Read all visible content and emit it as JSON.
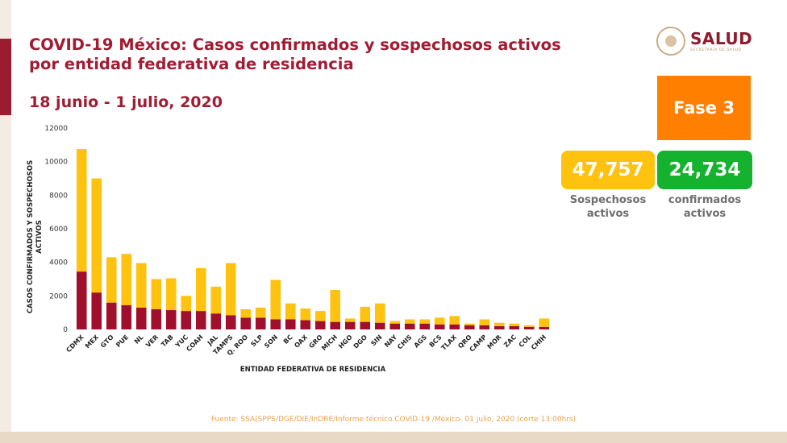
{
  "header": {
    "title_line1": "COVID-19 México: Casos confirmados y sospechosos activos",
    "title_line2": "por entidad federativa de residencia",
    "date_range": "18 junio - 1 julio, 2020"
  },
  "logo": {
    "text": "SALUD",
    "subtext": "SECRETARÍA DE SALUD"
  },
  "phase": {
    "label": "Fase 3",
    "color": "#ff8000"
  },
  "kpis": {
    "suspected": {
      "value": "47,757",
      "label_line1": "Sospechosos",
      "label_line2": "activos",
      "color": "#ffc20e"
    },
    "confirmed": {
      "value": "24,734",
      "label_line1": "confirmados",
      "label_line2": "activos",
      "color": "#14b22e"
    }
  },
  "source": "Fuente: SSA(SPPS/DGE/DIE/InDRE/Informe técnico.COVID-19 /México- 01 julio, 2020 (corte 13:00hrs)",
  "chart_data": {
    "type": "bar",
    "stacked": true,
    "title": "",
    "xlabel": "ENTIDAD FEDERATIVA DE RESIDENCIA",
    "ylabel": "CASOS CONFIRMADOS Y SOSPECHOSOS ACTIVOS",
    "ylim": [
      0,
      12000
    ],
    "yticks": [
      0,
      2000,
      4000,
      6000,
      8000,
      10000,
      12000
    ],
    "grid": false,
    "legend": "none",
    "categories": [
      "CDMX",
      "MEX",
      "GTO",
      "PUE",
      "NL",
      "VER",
      "TAB",
      "YUC",
      "COAH",
      "JAL",
      "TAMPS",
      "Q. ROO",
      "SLP",
      "SON",
      "BC",
      "OAX",
      "GRO",
      "MICH",
      "HGO",
      "DGO",
      "SIN",
      "NAY",
      "CHIS",
      "AGS",
      "BCS",
      "TLAX",
      "QRO",
      "CAMP",
      "MOR",
      "ZAC",
      "COL",
      "CHIH"
    ],
    "series": [
      {
        "name": "Confirmados activos",
        "color": "#a0102c",
        "values": [
          3450,
          2200,
          1600,
          1450,
          1300,
          1200,
          1150,
          1100,
          1100,
          950,
          850,
          700,
          700,
          600,
          600,
          550,
          500,
          450,
          450,
          450,
          400,
          350,
          350,
          350,
          300,
          300,
          250,
          250,
          200,
          200,
          150,
          150
        ]
      },
      {
        "name": "Sospechosos activos",
        "color": "#ffc20e",
        "values": [
          7300,
          6800,
          2700,
          3050,
          2650,
          1800,
          1900,
          900,
          2550,
          1600,
          3100,
          500,
          600,
          2350,
          950,
          700,
          600,
          1900,
          200,
          900,
          1150,
          150,
          250,
          250,
          400,
          500,
          100,
          350,
          200,
          150,
          100,
          500
        ]
      }
    ]
  }
}
